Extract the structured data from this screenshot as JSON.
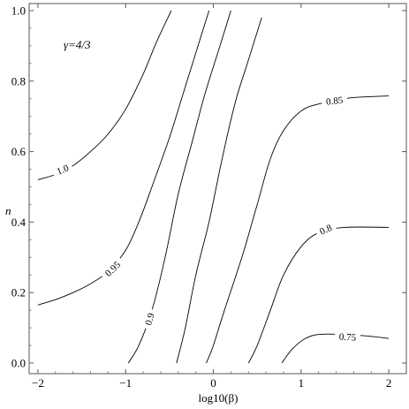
{
  "chart_data": {
    "type": "contour",
    "xlabel": "log10(β)",
    "ylabel": "n",
    "xlim": [
      -2.1,
      2.2
    ],
    "ylim": [
      -0.03,
      1.02
    ],
    "xticks": [
      -2,
      -1,
      0,
      1,
      2
    ],
    "xtick_labels": [
      "−2",
      "−1",
      "0",
      "1",
      "2"
    ],
    "yticks": [
      0.0,
      0.2,
      0.4,
      0.6,
      0.8,
      1.0
    ],
    "ytick_labels": [
      "0.0",
      "0.2",
      "0.4",
      "0.6",
      "0.8",
      "1.0"
    ],
    "annotation": "γ=4/3",
    "grid": false,
    "contours": [
      {
        "level": 1.0,
        "label": "1.0",
        "label_at": [
          -1.72,
          0.55
        ],
        "points": [
          [
            -2.0,
            0.52
          ],
          [
            -1.8,
            0.535
          ],
          [
            -1.6,
            0.56
          ],
          [
            -1.4,
            0.6
          ],
          [
            -1.2,
            0.65
          ],
          [
            -1.0,
            0.72
          ],
          [
            -0.8,
            0.82
          ],
          [
            -0.65,
            0.91
          ],
          [
            -0.48,
            1.0
          ]
        ]
      },
      {
        "level": 0.95,
        "label": "0.95",
        "label_at": [
          -1.15,
          0.268
        ],
        "points": [
          [
            -2.0,
            0.165
          ],
          [
            -1.8,
            0.18
          ],
          [
            -1.6,
            0.2
          ],
          [
            -1.4,
            0.225
          ],
          [
            -1.2,
            0.26
          ],
          [
            -1.0,
            0.32
          ],
          [
            -0.85,
            0.4
          ],
          [
            -0.7,
            0.5
          ],
          [
            -0.5,
            0.64
          ],
          [
            -0.35,
            0.76
          ],
          [
            -0.2,
            0.88
          ],
          [
            -0.05,
            1.0
          ]
        ]
      },
      {
        "level": 0.9,
        "label": "0.9",
        "label_at": [
          -0.73,
          0.125
        ],
        "points": [
          [
            -0.97,
            0.0
          ],
          [
            -0.85,
            0.05
          ],
          [
            -0.7,
            0.15
          ],
          [
            -0.55,
            0.3
          ],
          [
            -0.4,
            0.48
          ],
          [
            -0.25,
            0.62
          ],
          [
            -0.1,
            0.76
          ],
          [
            0.05,
            0.88
          ],
          [
            0.2,
            1.0
          ]
        ]
      },
      {
        "level": 0.88,
        "label": "",
        "label_at": null,
        "points": [
          [
            -0.42,
            0.0
          ],
          [
            -0.32,
            0.1
          ],
          [
            -0.2,
            0.25
          ],
          [
            -0.05,
            0.4
          ],
          [
            0.1,
            0.58
          ],
          [
            0.25,
            0.74
          ],
          [
            0.4,
            0.86
          ],
          [
            0.55,
            0.98
          ]
        ]
      },
      {
        "level": 0.87,
        "label": "",
        "label_at": null,
        "points": [
          [
            -0.08,
            0.0
          ],
          [
            0.0,
            0.05
          ],
          [
            0.1,
            0.13
          ],
          [
            0.22,
            0.22
          ]
        ]
      },
      {
        "level": 0.85,
        "label": "0.85",
        "label_at": [
          1.38,
          0.745
        ],
        "points": [
          [
            0.22,
            0.22
          ],
          [
            0.35,
            0.32
          ],
          [
            0.5,
            0.45
          ],
          [
            0.65,
            0.58
          ],
          [
            0.8,
            0.66
          ],
          [
            1.0,
            0.715
          ],
          [
            1.2,
            0.735
          ],
          [
            1.55,
            0.752
          ],
          [
            2.0,
            0.758
          ]
        ]
      },
      {
        "level": 0.8,
        "label": "0.8",
        "label_at": [
          1.28,
          0.38
        ],
        "points": [
          [
            0.4,
            0.0
          ],
          [
            0.5,
            0.05
          ],
          [
            0.65,
            0.15
          ],
          [
            0.8,
            0.25
          ],
          [
            1.0,
            0.33
          ],
          [
            1.2,
            0.37
          ],
          [
            1.5,
            0.385
          ],
          [
            2.0,
            0.385
          ]
        ]
      },
      {
        "level": 0.75,
        "label": "0.75",
        "label_at": [
          1.53,
          0.075
        ],
        "points": [
          [
            0.78,
            0.0
          ],
          [
            0.9,
            0.04
          ],
          [
            1.05,
            0.07
          ],
          [
            1.25,
            0.082
          ],
          [
            1.7,
            0.078
          ],
          [
            2.0,
            0.07
          ]
        ]
      }
    ]
  }
}
